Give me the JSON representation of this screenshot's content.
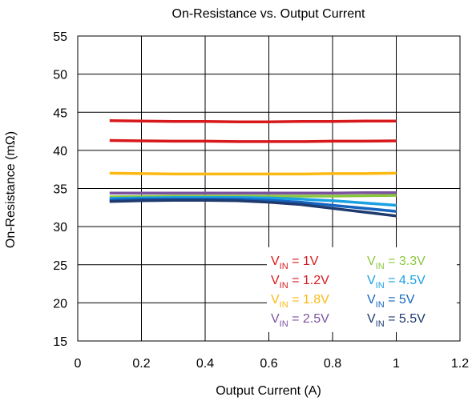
{
  "chart_data": {
    "type": "line",
    "title": "On-Resistance vs. Output Current",
    "xlabel": "Output Current (A)",
    "ylabel": "On-Resistance (mΩ)",
    "xlim": [
      0,
      1.2
    ],
    "ylim": [
      15,
      55
    ],
    "xticks": [
      "0",
      "0.2",
      "0.4",
      "0.6",
      "0.8",
      "1",
      "1.2"
    ],
    "yticks": [
      "15",
      "20",
      "25",
      "30",
      "35",
      "40",
      "45",
      "50",
      "55"
    ],
    "grid": true,
    "legend_position": "bottom-right",
    "series": [
      {
        "name": "V_IN = 1V",
        "legend_main": "V",
        "legend_sub": "IN",
        "legend_tail": " = 1V",
        "color": "#d7191c",
        "x": [
          0.1,
          0.2,
          0.3,
          0.4,
          0.5,
          0.6,
          0.7,
          0.8,
          0.9,
          1.0
        ],
        "y": [
          43.9,
          43.85,
          43.8,
          43.8,
          43.75,
          43.75,
          43.8,
          43.8,
          43.85,
          43.85
        ]
      },
      {
        "name": "V_IN = 1.2V",
        "legend_main": "V",
        "legend_sub": "IN",
        "legend_tail": " = 1.2V",
        "color": "#d7191c",
        "x": [
          0.1,
          0.2,
          0.3,
          0.4,
          0.5,
          0.6,
          0.7,
          0.8,
          0.9,
          1.0
        ],
        "y": [
          41.3,
          41.25,
          41.2,
          41.2,
          41.15,
          41.15,
          41.15,
          41.2,
          41.2,
          41.25
        ]
      },
      {
        "name": "V_IN = 1.8V",
        "legend_main": "V",
        "legend_sub": "IN",
        "legend_tail": " = 1.8V",
        "color": "#fdb913",
        "x": [
          0.1,
          0.2,
          0.3,
          0.4,
          0.5,
          0.6,
          0.7,
          0.8,
          0.9,
          1.0
        ],
        "y": [
          37.0,
          36.95,
          36.9,
          36.9,
          36.9,
          36.9,
          36.9,
          36.95,
          36.95,
          37.0
        ]
      },
      {
        "name": "V_IN = 2.5V",
        "legend_main": "V",
        "legend_sub": "IN",
        "legend_tail": " = 2.5V",
        "color": "#7b52a1",
        "x": [
          0.1,
          0.2,
          0.3,
          0.4,
          0.5,
          0.6,
          0.7,
          0.8,
          0.9,
          1.0
        ],
        "y": [
          34.4,
          34.4,
          34.4,
          34.4,
          34.4,
          34.4,
          34.4,
          34.4,
          34.45,
          34.45
        ]
      },
      {
        "name": "V_IN = 3.3V",
        "legend_main": "V",
        "legend_sub": "IN",
        "legend_tail": " = 3.3V",
        "color": "#8cc63f",
        "x": [
          0.1,
          0.2,
          0.3,
          0.4,
          0.5,
          0.6,
          0.7,
          0.8,
          0.9,
          1.0
        ],
        "y": [
          33.9,
          33.95,
          34.0,
          34.0,
          34.0,
          34.0,
          34.0,
          34.0,
          34.05,
          34.1
        ]
      },
      {
        "name": "V_IN = 4.5V",
        "legend_main": "V",
        "legend_sub": "IN",
        "legend_tail": " = 4.5V",
        "color": "#1ba1e2",
        "x": [
          0.1,
          0.2,
          0.3,
          0.4,
          0.5,
          0.6,
          0.7,
          0.8,
          0.9,
          1.0
        ],
        "y": [
          33.7,
          33.75,
          33.8,
          33.8,
          33.8,
          33.75,
          33.6,
          33.4,
          33.1,
          32.8
        ]
      },
      {
        "name": "V_IN = 5V",
        "legend_main": "V",
        "legend_sub": "IN",
        "legend_tail": " = 5V",
        "color": "#1565c0",
        "x": [
          0.1,
          0.2,
          0.3,
          0.4,
          0.5,
          0.6,
          0.7,
          0.8,
          0.9,
          1.0
        ],
        "y": [
          33.5,
          33.6,
          33.6,
          33.6,
          33.6,
          33.45,
          33.2,
          32.8,
          32.4,
          32.0
        ]
      },
      {
        "name": "V_IN = 5.5V",
        "legend_main": "V",
        "legend_sub": "IN",
        "legend_tail": " = 5.5V",
        "color": "#1f3a6e",
        "x": [
          0.1,
          0.2,
          0.3,
          0.4,
          0.5,
          0.6,
          0.7,
          0.8,
          0.9,
          1.0
        ],
        "y": [
          33.3,
          33.4,
          33.45,
          33.45,
          33.4,
          33.2,
          32.9,
          32.4,
          31.9,
          31.4
        ]
      }
    ]
  }
}
